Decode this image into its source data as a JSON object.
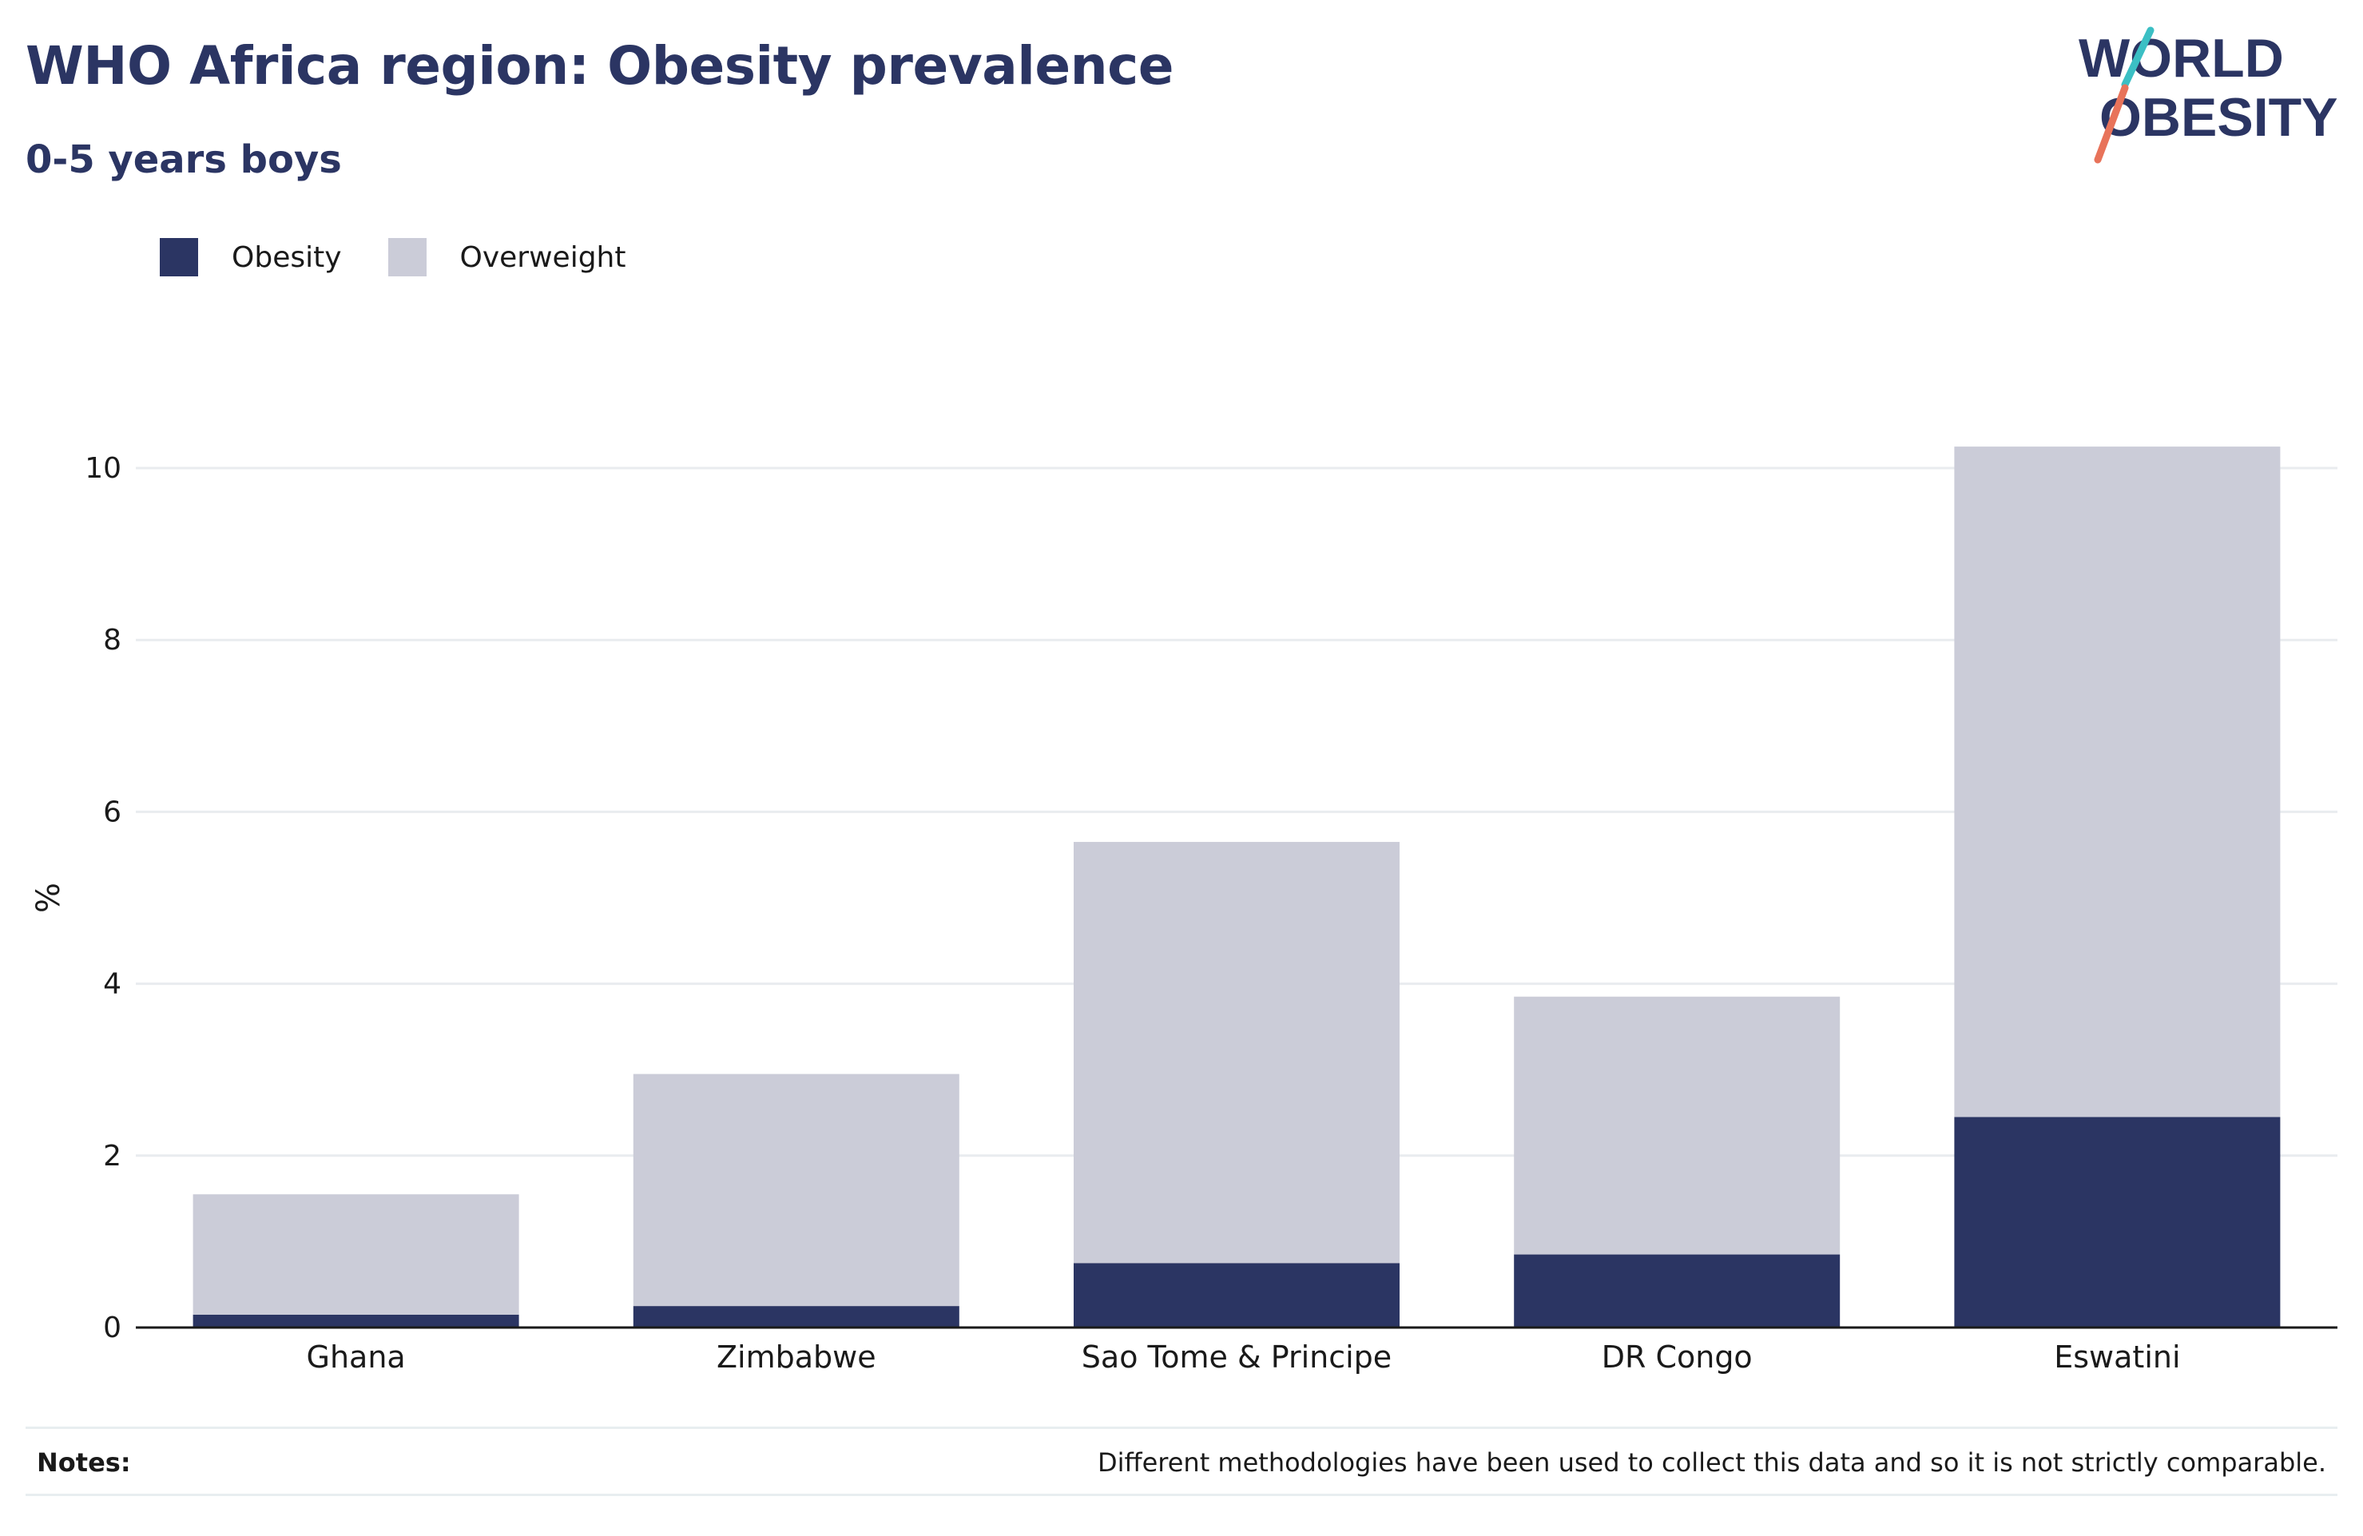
{
  "header": {
    "title": "WHO Africa region: Obesity prevalence",
    "subtitle": "0-5 years boys"
  },
  "logo": {
    "line1": "WORLD",
    "line2": "OBESITY",
    "accent_teal": "#3bbfc4",
    "accent_coral": "#e8735a"
  },
  "legend": {
    "obesity_label": "Obesity",
    "overweight_label": "Overweight"
  },
  "colors": {
    "obesity": "#2b3563",
    "overweight": "#cbccd8",
    "grid": "#e9ecef",
    "axis": "#1a1a1a"
  },
  "chart_data": {
    "type": "bar",
    "stacked": true,
    "categories": [
      "Ghana",
      "Zimbabwe",
      "Sao Tome & Principe",
      "DR Congo",
      "Eswatini"
    ],
    "series": [
      {
        "name": "Obesity",
        "values": [
          0.15,
          0.25,
          0.75,
          0.85,
          2.45
        ]
      },
      {
        "name": "Overweight",
        "values": [
          1.4,
          2.7,
          4.9,
          3.0,
          7.8
        ]
      }
    ],
    "ylabel": "%",
    "xlabel": "",
    "ylim": [
      0,
      10.5
    ],
    "yticks": [
      0,
      2,
      4,
      6,
      8,
      10
    ],
    "grid": true,
    "legend_position": "top-left"
  },
  "notes": {
    "label": "Notes:",
    "text": "Different methodologies have been used to collect this data and so it is not strictly comparable."
  }
}
